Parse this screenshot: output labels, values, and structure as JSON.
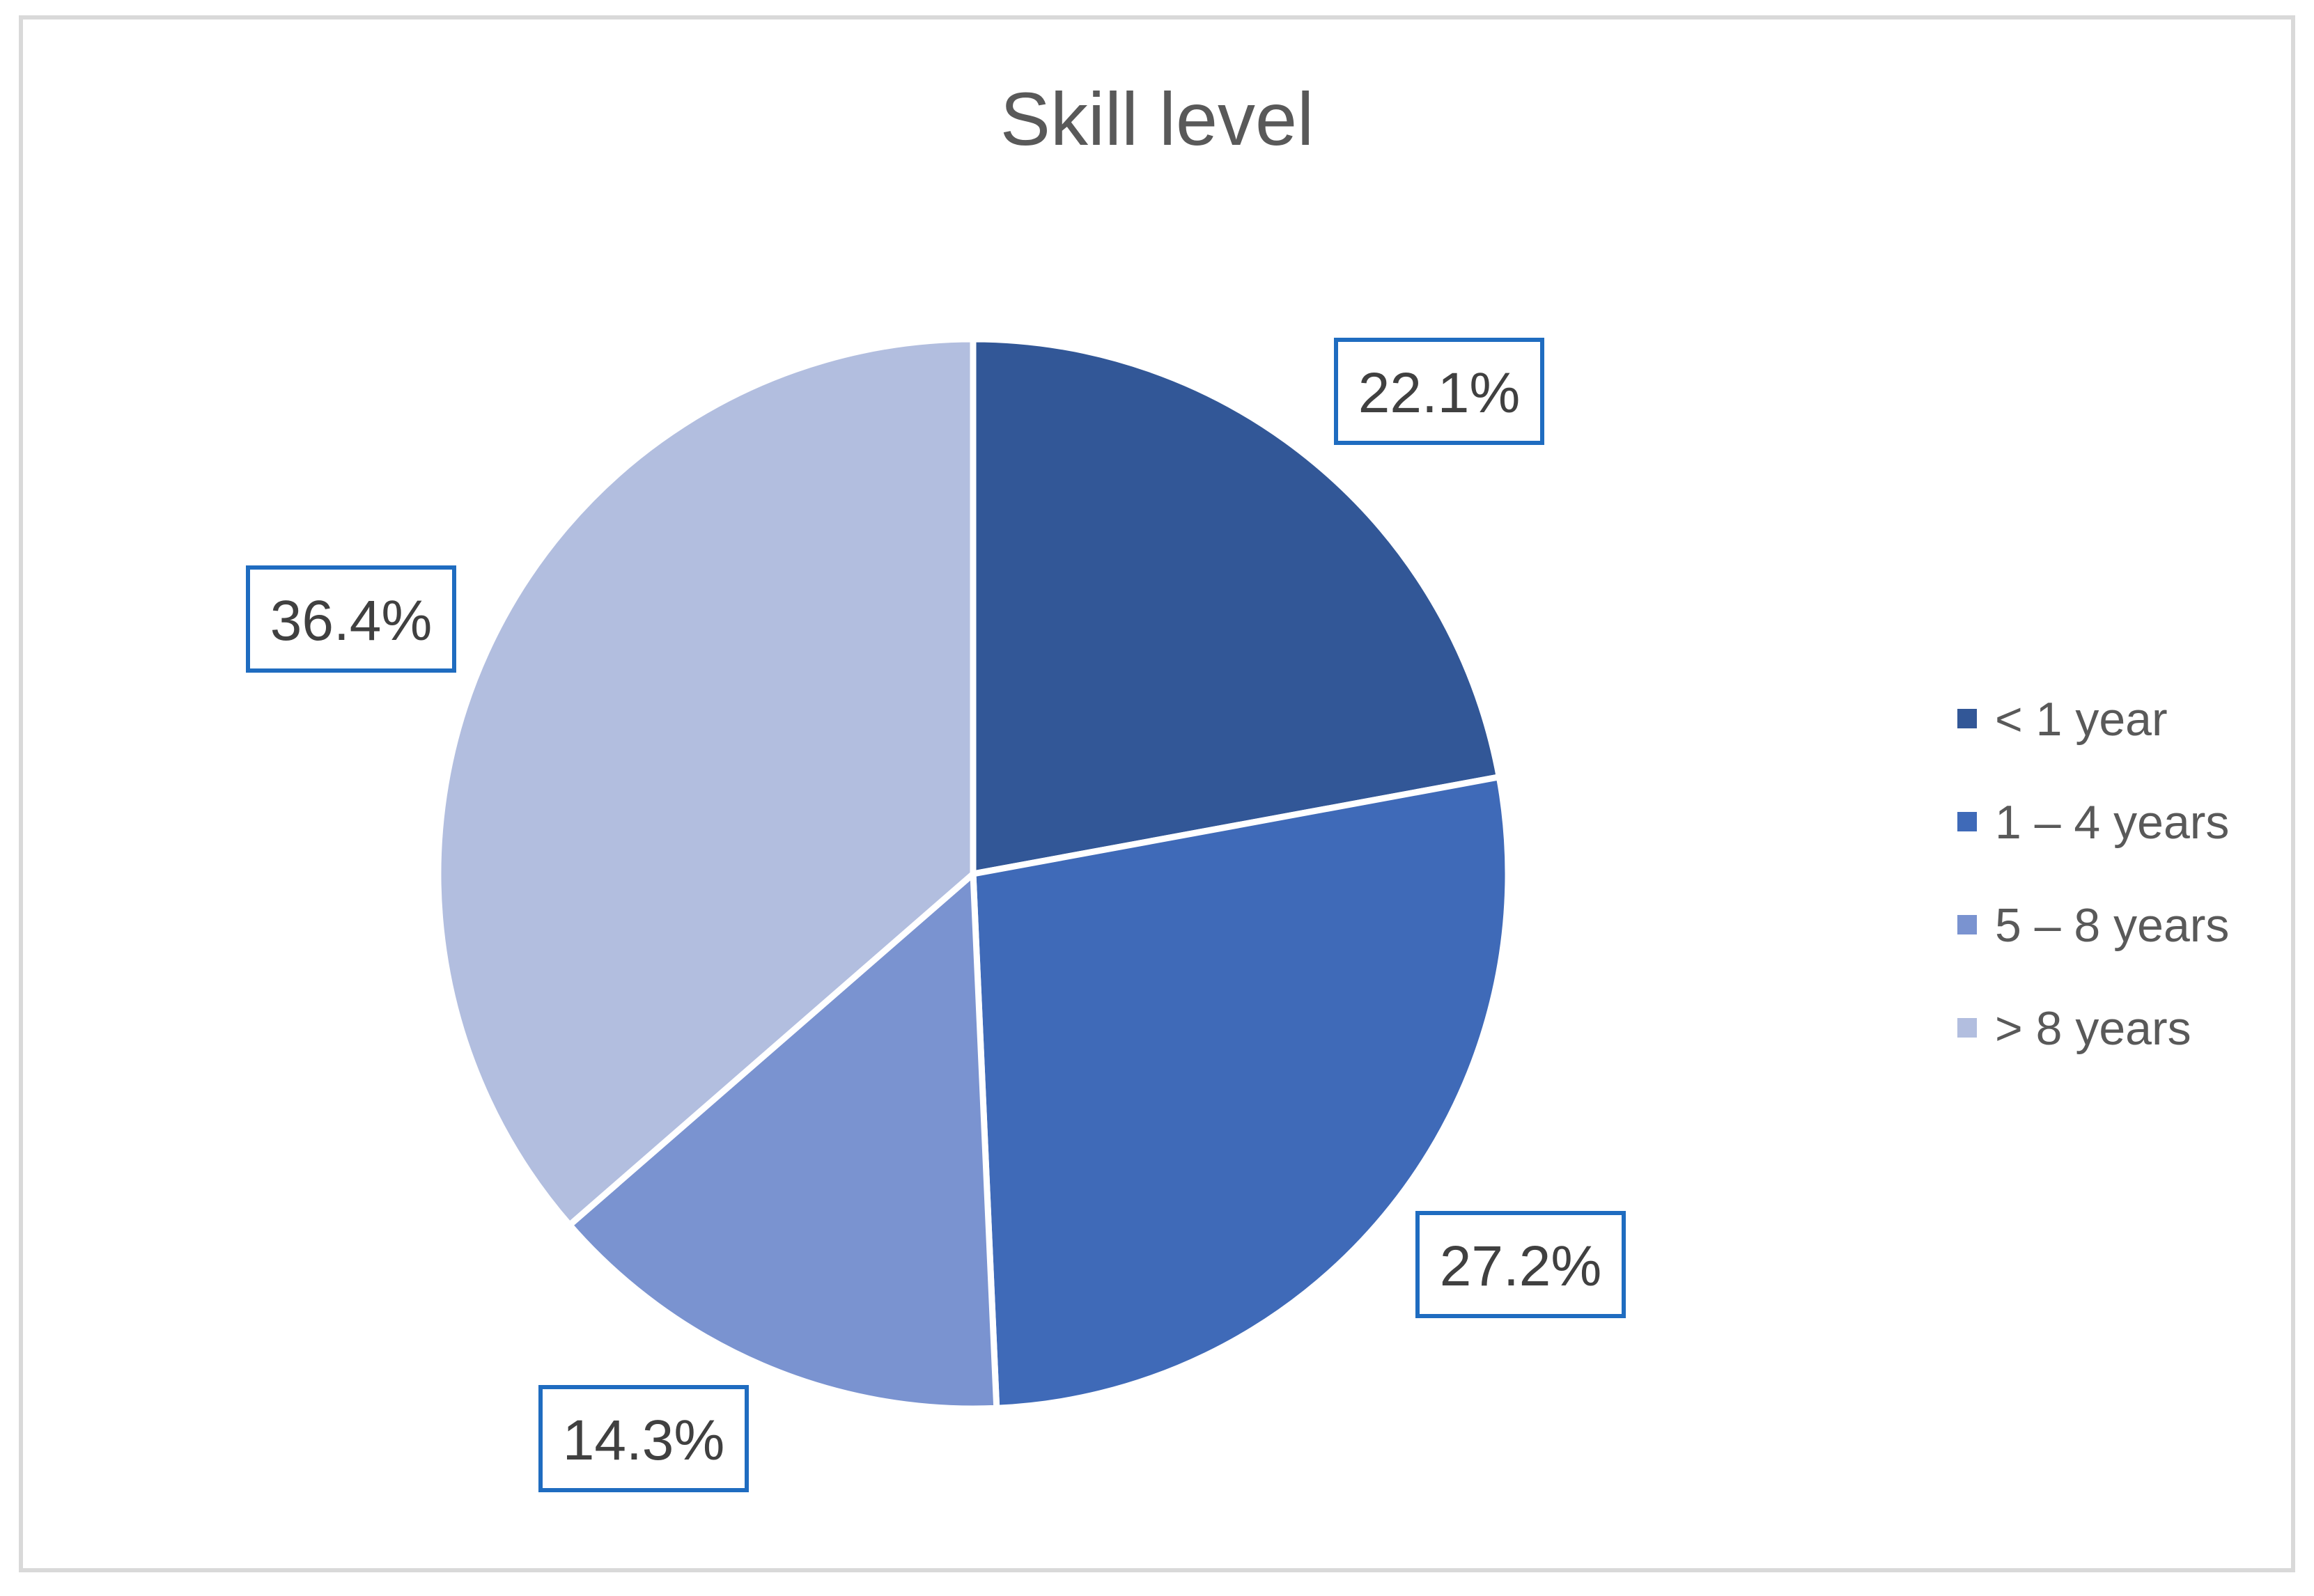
{
  "chart_data": {
    "type": "pie",
    "title": "Skill level",
    "categories": [
      "< 1 year",
      "1 – 4 years",
      "5 – 8 years",
      "> 8 years"
    ],
    "values": [
      22.1,
      27.2,
      14.3,
      36.4
    ],
    "labels": [
      "22.1%",
      "27.2%",
      "14.3%",
      "36.4%"
    ],
    "colors": [
      "#325797",
      "#3f6ab8",
      "#7a93d0",
      "#b2bedf"
    ],
    "start_angle": "12 o'clock",
    "direction": "clockwise",
    "legend": {
      "position": "right",
      "entries": [
        "< 1 year",
        "1 – 4 years",
        "5 – 8 years",
        "> 8 years"
      ]
    },
    "data_label_border_color": "#1f6cc0"
  }
}
